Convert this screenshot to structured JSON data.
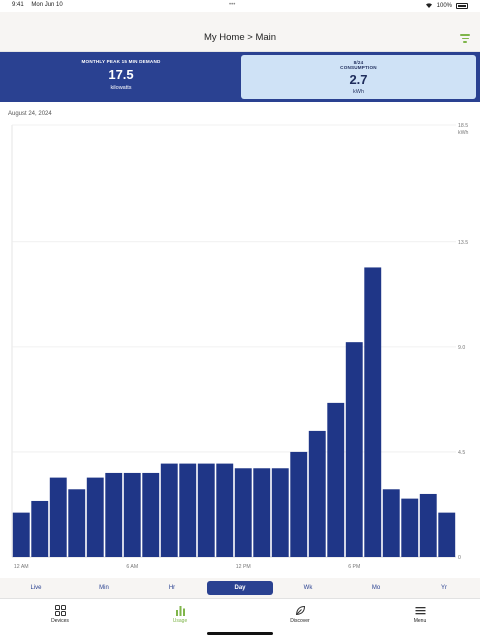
{
  "status_bar": {
    "time": "9:41",
    "date": "Mon Jun 10",
    "battery": "100%"
  },
  "header": {
    "title": "My Home > Main",
    "filter_icon": "filter-icon"
  },
  "summary": {
    "peak": {
      "label": "MONTHLY PEAK 15 MIN DEMAND",
      "value": "17.5",
      "unit": "kilowatts"
    },
    "consumption": {
      "date": "8/24",
      "label": "CONSUMPTION",
      "value": "2.7",
      "unit": "kWh"
    }
  },
  "date_label": "August 24, 2024",
  "chart_data": {
    "type": "bar",
    "categories": [
      "12 AM",
      "1 AM",
      "2 AM",
      "3 AM",
      "4 AM",
      "5 AM",
      "6 AM",
      "7 AM",
      "8 AM",
      "9 AM",
      "10 AM",
      "11 AM",
      "12 PM",
      "1 PM",
      "2 PM",
      "3 PM",
      "4 PM",
      "5 PM",
      "6 PM",
      "7 PM",
      "8 PM",
      "9 PM",
      "10 PM",
      "11 PM"
    ],
    "values": [
      1.9,
      2.4,
      3.4,
      2.9,
      3.4,
      3.6,
      3.6,
      3.6,
      4.0,
      4.0,
      4.0,
      4.0,
      3.8,
      3.8,
      3.8,
      4.5,
      5.4,
      6.6,
      9.2,
      12.4,
      2.9,
      2.5,
      2.7,
      1.9
    ],
    "ylim": [
      0,
      18.5
    ],
    "y_ticks": [
      "0",
      "4.5",
      "9.0",
      "13.5",
      "18.5"
    ],
    "y_unit": "kWh",
    "x_tick_labels": [
      "12 AM",
      "6 AM",
      "12 PM",
      "6 PM"
    ],
    "bar_color": "#1f3687",
    "grid": true
  },
  "periods": [
    "Live",
    "Min",
    "Hr",
    "Day",
    "Wk",
    "Mo",
    "Yr"
  ],
  "active_period": "Day",
  "nav": [
    {
      "label": "Devices",
      "icon": "devices-icon"
    },
    {
      "label": "Usage",
      "icon": "usage-icon"
    },
    {
      "label": "Discover",
      "icon": "discover-icon"
    },
    {
      "label": "Menu",
      "icon": "menu-icon"
    }
  ],
  "colors": {
    "brand": "#2a4191",
    "accent": "#7fb54a",
    "card_highlight": "#cfe2f6"
  }
}
